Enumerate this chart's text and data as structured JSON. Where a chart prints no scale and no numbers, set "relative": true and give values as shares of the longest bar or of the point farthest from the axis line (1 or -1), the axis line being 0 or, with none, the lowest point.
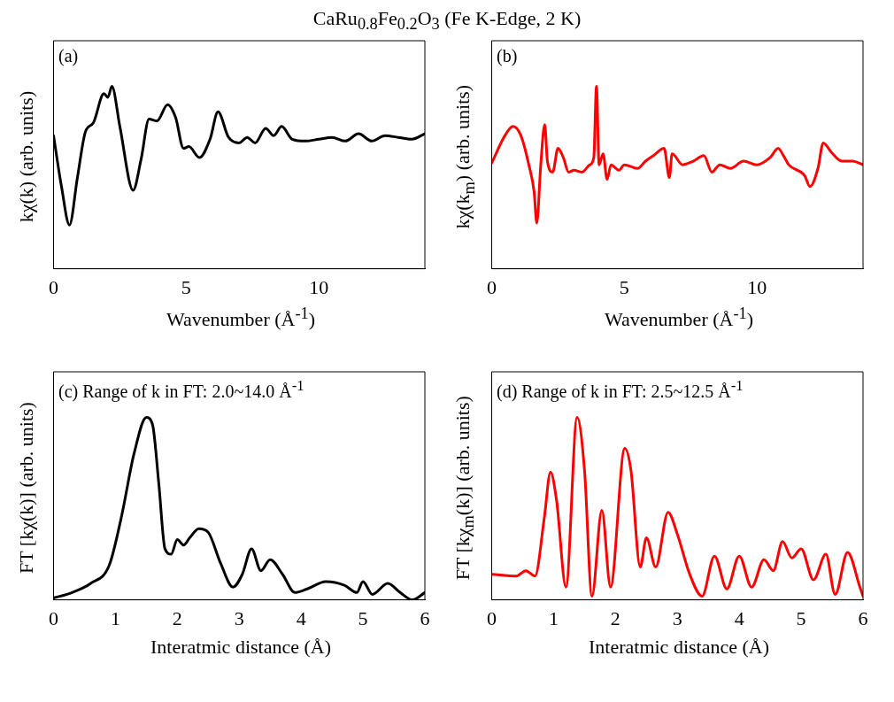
{
  "chart_data": [
    {
      "type": "line",
      "title": "CaRu$_{0.8}$Fe$_{0.2}$O$_{3}$ (Fe K-Edge, 2 K)",
      "xlabel": "Wavenumber (Å$^{-1}$)",
      "ylabel": "kχ(k) (arb. units)",
      "annotations": [
        "(a)"
      ],
      "relative": true,
      "xlim": [
        0,
        14
      ],
      "xticks": [
        0,
        5,
        10
      ],
      "grid": false,
      "legend": false,
      "marker": "none",
      "line_style": "solid",
      "series": [
        {
          "color": "#000000",
          "x": [
            0,
            0.3,
            0.6,
            0.9,
            1.2,
            1.5,
            1.9,
            2.05,
            2.2,
            2.5,
            3.0,
            3.3,
            3.6,
            3.9,
            4.3,
            4.6,
            4.9,
            5.1,
            5.5,
            5.9,
            6.2,
            6.6,
            7.0,
            7.3,
            7.6,
            8.0,
            8.3,
            8.6,
            9.0,
            9.5,
            10,
            10.5,
            11,
            11.5,
            12,
            12.5,
            13,
            13.5,
            14
          ],
          "values": [
            0.73,
            0.45,
            0.24,
            0.5,
            0.75,
            0.8,
            0.96,
            0.94,
            1.0,
            0.78,
            0.43,
            0.6,
            0.82,
            0.81,
            0.9,
            0.83,
            0.66,
            0.67,
            0.61,
            0.71,
            0.86,
            0.72,
            0.69,
            0.72,
            0.69,
            0.77,
            0.73,
            0.78,
            0.71,
            0.7,
            0.71,
            0.72,
            0.7,
            0.74,
            0.7,
            0.73,
            0.72,
            0.71,
            0.74
          ]
        }
      ]
    },
    {
      "type": "line",
      "xlabel": "Wavenumber (Å$^{-1}$)",
      "ylabel": "kχ(k$_{m}$) (arb. units)",
      "annotations": [
        "(b)"
      ],
      "relative": true,
      "xlim": [
        0,
        14
      ],
      "xticks": [
        0,
        5,
        10
      ],
      "grid": false,
      "legend": false,
      "marker": "none",
      "line_style": "solid",
      "series": [
        {
          "color": "#ff0000",
          "x": [
            0,
            0.5,
            0.8,
            1.1,
            1.4,
            1.6,
            1.7,
            1.85,
            2.0,
            2.1,
            2.3,
            2.5,
            2.7,
            2.9,
            3.1,
            3.4,
            3.7,
            3.85,
            3.95,
            4.05,
            4.2,
            4.35,
            4.5,
            4.8,
            5.0,
            5.5,
            5.8,
            6.1,
            6.5,
            6.7,
            6.8,
            7.2,
            7.6,
            8.0,
            8.3,
            8.6,
            9.0,
            9.5,
            10.0,
            10.5,
            10.8,
            11.0,
            11.2,
            11.8,
            12.0,
            12.3,
            12.5,
            12.8,
            13.2,
            13.6,
            14
          ],
          "values": [
            0.58,
            0.73,
            0.78,
            0.73,
            0.57,
            0.42,
            0.25,
            0.57,
            0.79,
            0.59,
            0.53,
            0.66,
            0.61,
            0.53,
            0.54,
            0.53,
            0.57,
            0.61,
            1.0,
            0.57,
            0.63,
            0.49,
            0.57,
            0.54,
            0.57,
            0.55,
            0.59,
            0.62,
            0.66,
            0.5,
            0.63,
            0.57,
            0.59,
            0.62,
            0.53,
            0.57,
            0.55,
            0.59,
            0.57,
            0.61,
            0.66,
            0.62,
            0.57,
            0.51,
            0.45,
            0.55,
            0.69,
            0.64,
            0.59,
            0.59,
            0.57
          ]
        }
      ]
    },
    {
      "type": "line",
      "xlabel": "Interatmic distance (Å)",
      "ylabel": "FT [kχ(k)] (arb. units)",
      "annotations": [
        "(c) Range of k in FT: 2.0~14.0 Å$^{-1}$"
      ],
      "relative": true,
      "xlim": [
        0,
        6
      ],
      "xticks": [
        0,
        1,
        2,
        3,
        4,
        5,
        6
      ],
      "grid": false,
      "legend": false,
      "marker": "none",
      "line_style": "solid",
      "series": [
        {
          "color": "#000000",
          "x": [
            0,
            0.3,
            0.6,
            0.9,
            1.1,
            1.3,
            1.5,
            1.6,
            1.7,
            1.8,
            1.9,
            2.0,
            2.1,
            2.2,
            2.35,
            2.5,
            2.7,
            2.9,
            3.05,
            3.2,
            3.35,
            3.5,
            3.7,
            3.9,
            4.1,
            4.4,
            4.7,
            4.9,
            5.0,
            5.15,
            5.4,
            5.6,
            5.8,
            6.0
          ],
          "values": [
            0.01,
            0.04,
            0.09,
            0.19,
            0.46,
            0.8,
            1.0,
            0.96,
            0.64,
            0.28,
            0.25,
            0.33,
            0.3,
            0.34,
            0.39,
            0.37,
            0.2,
            0.07,
            0.14,
            0.28,
            0.16,
            0.22,
            0.14,
            0.04,
            0.06,
            0.1,
            0.08,
            0.04,
            0.1,
            0.03,
            0.09,
            0.04,
            0.0,
            0.04
          ]
        }
      ]
    },
    {
      "type": "line",
      "xlabel": "Interatmic distance (Å)",
      "ylabel": "FT [kχ$_{m}$(k)] (arb. units)",
      "annotations": [
        "(d) Range of k in FT: 2.5~12.5 Å$^{-1}$"
      ],
      "relative": true,
      "xlim": [
        0,
        6
      ],
      "xticks": [
        0,
        1,
        2,
        3,
        4,
        5,
        6
      ],
      "grid": false,
      "legend": false,
      "marker": "none",
      "line_style": "solid",
      "series": [
        {
          "color": "#ff0000",
          "x": [
            0,
            0.4,
            0.55,
            0.7,
            0.85,
            0.95,
            1.05,
            1.2,
            1.38,
            1.5,
            1.62,
            1.78,
            1.92,
            2.15,
            2.25,
            2.4,
            2.5,
            2.65,
            2.85,
            3.0,
            3.2,
            3.4,
            3.6,
            3.8,
            4.0,
            4.2,
            4.4,
            4.55,
            4.7,
            4.85,
            5.0,
            5.2,
            5.4,
            5.55,
            5.75,
            5.95,
            6.0
          ],
          "values": [
            0.14,
            0.13,
            0.16,
            0.13,
            0.45,
            0.7,
            0.54,
            0.07,
            1.0,
            0.71,
            0.02,
            0.49,
            0.07,
            0.83,
            0.71,
            0.18,
            0.34,
            0.18,
            0.48,
            0.36,
            0.14,
            0.02,
            0.24,
            0.06,
            0.24,
            0.07,
            0.22,
            0.16,
            0.32,
            0.23,
            0.28,
            0.11,
            0.25,
            0.03,
            0.26,
            0.07,
            0.02
          ]
        }
      ]
    }
  ]
}
